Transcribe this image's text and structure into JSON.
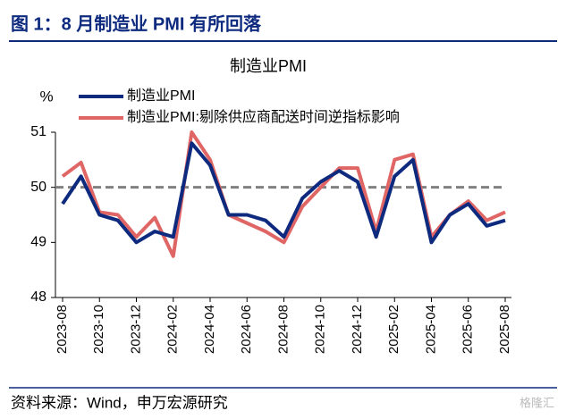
{
  "header": {
    "title": "图 1：8 月制造业 PMI 有所回落"
  },
  "chart_data": {
    "type": "line",
    "title": "制造业PMI",
    "y_label": "%",
    "categories": [
      "2023-08",
      null,
      "2023-10",
      null,
      "2023-12",
      null,
      "2024-02",
      null,
      "2024-04",
      null,
      "2024-06",
      null,
      "2024-08",
      null,
      "2024-10",
      null,
      "2024-12",
      null,
      "2025-02",
      null,
      "2025-04",
      null,
      "2025-06",
      null,
      "2025-08"
    ],
    "series": [
      {
        "name": "制造业PMI",
        "color": "#0d2a7f",
        "values": [
          49.7,
          50.2,
          49.5,
          49.4,
          49.0,
          49.2,
          49.1,
          50.8,
          50.4,
          49.5,
          49.5,
          49.4,
          49.1,
          49.8,
          50.1,
          50.3,
          50.1,
          49.1,
          50.2,
          50.5,
          49.0,
          49.5,
          49.7,
          49.3,
          49.4
        ]
      },
      {
        "name": "制造业PMI:剔除供应商配送时间逆指标影响",
        "color": "#e06666",
        "values": [
          50.2,
          50.45,
          49.55,
          49.5,
          49.1,
          49.45,
          48.75,
          51.0,
          50.5,
          49.5,
          49.35,
          49.2,
          49.0,
          49.65,
          50.0,
          50.35,
          50.35,
          49.2,
          50.5,
          50.6,
          49.1,
          49.5,
          49.75,
          49.4,
          49.55
        ]
      }
    ],
    "ylim": [
      48,
      51
    ],
    "yticks": [
      48,
      49,
      50,
      51
    ],
    "reference_line": 50,
    "reference_color": "#808080"
  },
  "footer": {
    "source": "资料来源：Wind，申万宏源研究",
    "watermark": "格隆汇"
  }
}
